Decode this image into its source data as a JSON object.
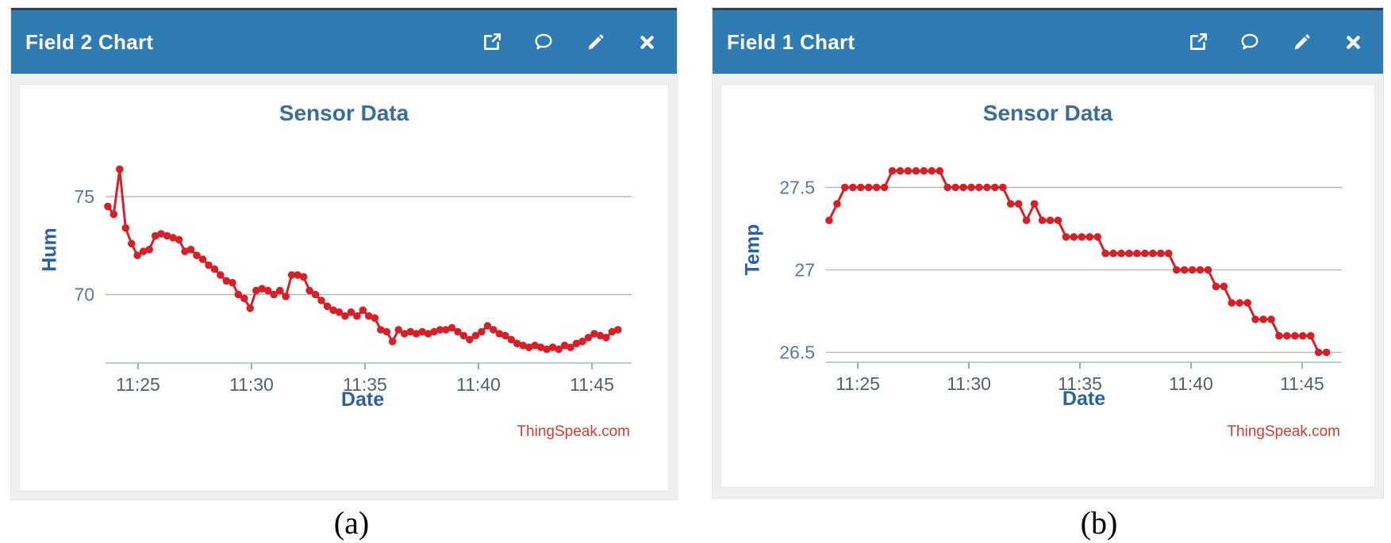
{
  "captions": {
    "a": "(a)",
    "b": "(b)"
  },
  "panels": [
    {
      "title": "Field 2 Chart"
    },
    {
      "title": "Field 1 Chart"
    }
  ],
  "colors": {
    "header_blue": "#2f7cb5",
    "series_red": "#d62027",
    "credit_red": "#d23c35",
    "axis_label_blue": "#2a61a1",
    "title_blue": "#3a6d9e",
    "gridline_gray": "#b2b2b2"
  },
  "chart_data": [
    {
      "type": "line",
      "title": "Sensor Data",
      "xlabel": "Date",
      "ylabel": "Hum",
      "credit": "ThingSpeak.com",
      "line_color": "#d62027",
      "grid": "horizontal-only",
      "legend": "none",
      "x_tick_labels": [
        "11:25",
        "11:30",
        "11:35",
        "11:40",
        "11:45"
      ],
      "x_tick_minutes": [
        25,
        30,
        35,
        40,
        45
      ],
      "x_minutes_range": [
        23.57,
        46.75
      ],
      "x_data_range": [
        23.67,
        46.15
      ],
      "y_ticks": [
        {
          "value": 70,
          "label": "70"
        },
        {
          "value": 75,
          "label": "75"
        }
      ],
      "ylim": [
        66.5,
        78.0
      ],
      "values": [
        74.5,
        74.1,
        76.4,
        73.4,
        72.6,
        72.0,
        72.2,
        72.3,
        73.0,
        73.1,
        73.0,
        72.9,
        72.8,
        72.2,
        72.3,
        72.0,
        71.8,
        71.5,
        71.3,
        71.0,
        70.7,
        70.6,
        70.0,
        69.8,
        69.3,
        70.2,
        70.3,
        70.2,
        70.0,
        70.2,
        69.9,
        71.0,
        71.0,
        70.9,
        70.2,
        70.0,
        69.7,
        69.4,
        69.2,
        69.1,
        68.9,
        69.1,
        68.9,
        69.2,
        68.9,
        68.8,
        68.2,
        68.1,
        67.6,
        68.2,
        68.0,
        68.1,
        68.0,
        68.1,
        68.0,
        68.1,
        68.2,
        68.2,
        68.3,
        68.1,
        67.9,
        67.7,
        67.9,
        68.1,
        68.4,
        68.2,
        68.0,
        67.9,
        67.7,
        67.5,
        67.4,
        67.3,
        67.4,
        67.3,
        67.2,
        67.3,
        67.2,
        67.4,
        67.3,
        67.5,
        67.6,
        67.8,
        68.0,
        67.9,
        67.8,
        68.1,
        68.2
      ]
    },
    {
      "type": "line",
      "title": "Sensor Data",
      "xlabel": "Date",
      "ylabel": "Temp",
      "credit": "ThingSpeak.com",
      "line_color": "#d62027",
      "grid": "horizontal-only",
      "legend": "none",
      "x_tick_labels": [
        "11:25",
        "11:30",
        "11:35",
        "11:40",
        "11:45"
      ],
      "x_tick_minutes": [
        25,
        30,
        35,
        40,
        45
      ],
      "x_minutes_range": [
        23.57,
        46.79
      ],
      "x_data_range": [
        23.71,
        46.1
      ],
      "y_ticks": [
        {
          "value": 26.5,
          "label": "26.5"
        },
        {
          "value": 27,
          "label": "27"
        },
        {
          "value": 27.5,
          "label": "27.5"
        }
      ],
      "ylim": [
        26.44,
        27.8
      ],
      "values": [
        27.3,
        27.4,
        27.5,
        27.5,
        27.5,
        27.5,
        27.5,
        27.5,
        27.6,
        27.6,
        27.6,
        27.6,
        27.6,
        27.6,
        27.6,
        27.5,
        27.5,
        27.5,
        27.5,
        27.5,
        27.5,
        27.5,
        27.5,
        27.4,
        27.4,
        27.3,
        27.4,
        27.3,
        27.3,
        27.3,
        27.2,
        27.2,
        27.2,
        27.2,
        27.2,
        27.1,
        27.1,
        27.1,
        27.1,
        27.1,
        27.1,
        27.1,
        27.1,
        27.1,
        27.0,
        27.0,
        27.0,
        27.0,
        27.0,
        26.9,
        26.9,
        26.8,
        26.8,
        26.8,
        26.7,
        26.7,
        26.7,
        26.6,
        26.6,
        26.6,
        26.6,
        26.6,
        26.5,
        26.5
      ]
    }
  ]
}
